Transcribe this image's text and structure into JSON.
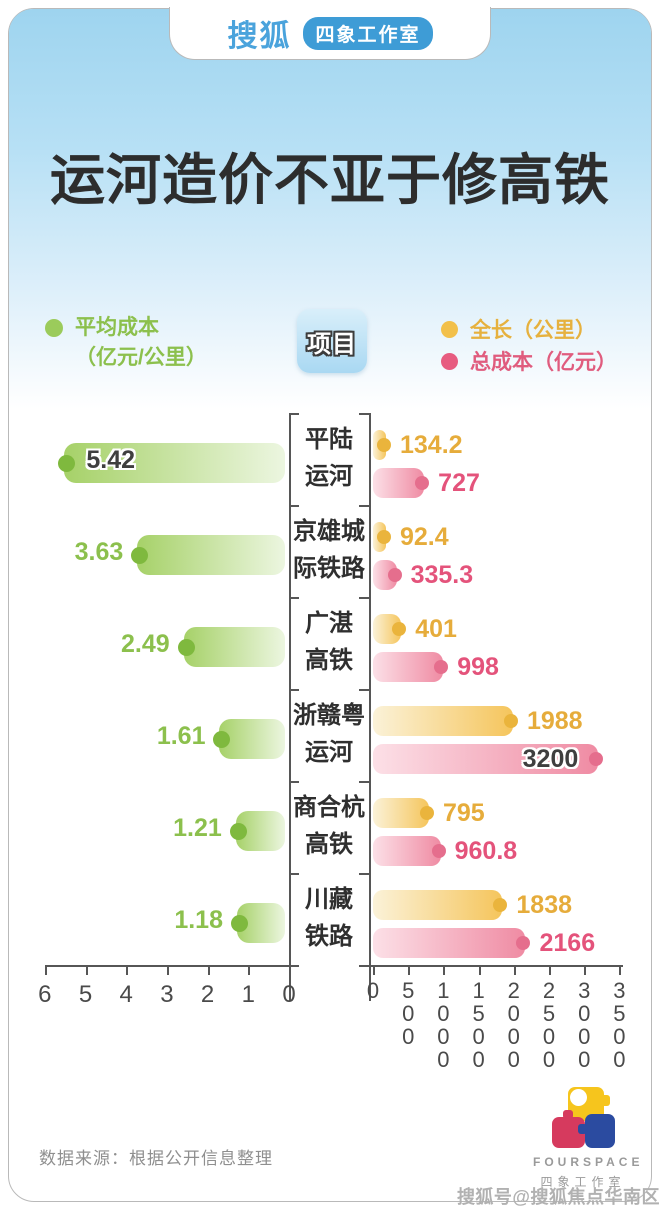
{
  "header": {
    "brand": "搜狐",
    "studio_badge": "四象工作室"
  },
  "title": "运河造价不亚于修高铁",
  "legend": {
    "avg_cost_line1": "平均成本",
    "avg_cost_line2": "（亿元/公里）",
    "project_header": "项目",
    "length_label": "全长（公里）",
    "total_cost_label": "总成本（亿元）"
  },
  "colors": {
    "green_bar": "#a6d168",
    "green_dot": "#7fb93e",
    "green_text": "#8cc04d",
    "yellow_bar": "#f5c55c",
    "yellow_dot": "#eab43c",
    "yellow_text": "#e6ac3b",
    "pink_bar": "#ef8ba3",
    "pink_dot": "#e56e8d",
    "pink_text": "#e4537b",
    "brand_blue": "#3e9cd6",
    "sky_blue": "#9ed4ef",
    "title_color": "#2d2d2d"
  },
  "chart_data": {
    "type": "bar",
    "orientation": "horizontal-bidirectional",
    "title": "运河造价不亚于修高铁",
    "categories": [
      "平陆运河",
      "京雄城际铁路",
      "广湛高铁",
      "浙赣粤运河",
      "商合杭高铁",
      "川藏铁路"
    ],
    "category_lines": [
      [
        "平陆",
        "运河"
      ],
      [
        "京雄城",
        "际铁路"
      ],
      [
        "广湛",
        "高铁"
      ],
      [
        "浙赣粤",
        "运河"
      ],
      [
        "商合杭",
        "高铁"
      ],
      [
        "川藏",
        "铁路"
      ]
    ],
    "series": [
      {
        "name": "平均成本（亿元/公里）",
        "side": "left",
        "values": [
          5.42,
          3.63,
          2.49,
          1.61,
          1.21,
          1.18
        ],
        "axis_range": [
          0,
          6
        ]
      },
      {
        "name": "全长（公里）",
        "side": "right",
        "values": [
          134.2,
          92.4,
          401,
          1988,
          795,
          1838
        ],
        "axis_range": [
          0,
          3500
        ]
      },
      {
        "name": "总成本（亿元）",
        "side": "right",
        "values": [
          727,
          335.3,
          998,
          3200,
          960.8,
          2166
        ],
        "axis_range": [
          0,
          3500
        ]
      }
    ],
    "left_axis_ticks": [
      "6",
      "5",
      "4",
      "3",
      "2",
      "1",
      "0"
    ],
    "right_axis_ticks": [
      "0",
      "500",
      "1000",
      "1500",
      "2000",
      "2500",
      "3000",
      "3500"
    ],
    "grid": false,
    "legend_position": "top"
  },
  "footer": {
    "source": "数据来源：根据公开信息整理",
    "logo_en": "FOURSPACE",
    "logo_cn": "四象工作室",
    "watermark": "搜狐号@搜狐焦点华南区"
  }
}
